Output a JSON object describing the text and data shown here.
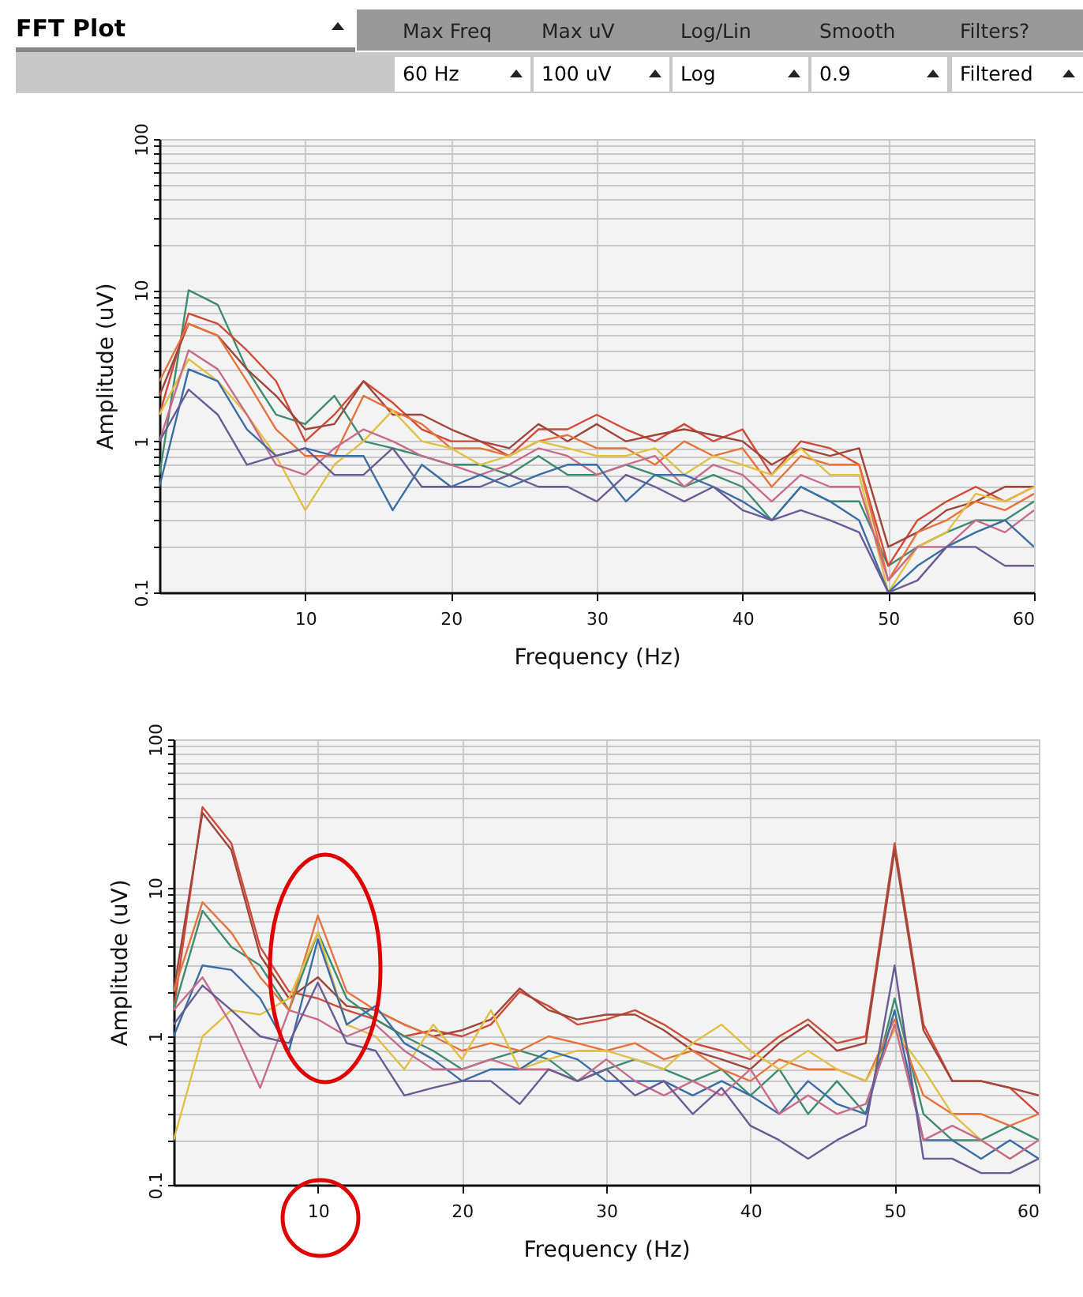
{
  "chart_data": [
    {
      "type": "line",
      "title": "FFT Plot",
      "annotations": [
        "Max Freq",
        "Max uV",
        "Log/Lin",
        "Smooth",
        "Filters?",
        "60 Hz",
        "100 uV",
        "Log",
        "0.9",
        "Filtered"
      ],
      "xlabel": "Frequency (Hz)",
      "ylabel": "Amplitude (uV)",
      "log": true,
      "grid": true,
      "xlim": [
        0,
        60
      ],
      "xticks": [
        10,
        20,
        30,
        40,
        50,
        60
      ],
      "ylim": [
        0.1,
        100
      ],
      "yticks": [
        0.1,
        {
          "value": 0.2,
          "label": null
        },
        {
          "value": 0.3,
          "label": null
        },
        {
          "value": 0.4,
          "label": null
        },
        {
          "value": 0.5,
          "label": null
        },
        {
          "value": 0.6,
          "label": null
        },
        {
          "value": 0.7,
          "label": null
        },
        {
          "value": 0.8,
          "label": null
        },
        {
          "value": 0.9,
          "label": null
        },
        1,
        {
          "value": 2,
          "label": null
        },
        {
          "value": 3,
          "label": null
        },
        {
          "value": 4,
          "label": null
        },
        {
          "value": 5,
          "label": null
        },
        {
          "value": 6,
          "label": null
        },
        {
          "value": 7,
          "label": null
        },
        {
          "value": 8,
          "label": null
        },
        {
          "value": 9,
          "label": null
        },
        10,
        {
          "value": 20,
          "label": null
        },
        {
          "value": 30,
          "label": null
        },
        {
          "value": 40,
          "label": null
        },
        {
          "value": 50,
          "label": null
        },
        {
          "value": 60,
          "label": null
        },
        {
          "value": 70,
          "label": null
        },
        {
          "value": 80,
          "label": null
        },
        {
          "value": 90,
          "label": null
        },
        100
      ],
      "x": [
        0,
        2,
        4,
        6,
        8,
        10,
        12,
        14,
        16,
        18,
        20,
        22,
        24,
        26,
        28,
        30,
        32,
        34,
        36,
        38,
        40,
        42,
        44,
        46,
        48,
        50,
        52,
        54,
        56,
        58,
        60
      ],
      "series": [
        {
          "color": "#3d8c6e",
          "values": [
            0.6,
            10,
            8,
            3,
            1.5,
            1.3,
            2,
            1,
            0.9,
            0.8,
            0.7,
            0.7,
            0.6,
            0.8,
            0.6,
            0.6,
            0.7,
            0.6,
            0.5,
            0.6,
            0.5,
            0.3,
            0.5,
            0.4,
            0.4,
            0.15,
            0.2,
            0.25,
            0.3,
            0.3,
            0.4
          ]
        },
        {
          "color": "#d04a3a",
          "values": [
            1.5,
            7,
            6,
            4,
            2.5,
            1,
            1.5,
            2.5,
            1.8,
            1.2,
            1,
            1,
            0.8,
            1.2,
            1.2,
            1.5,
            1.2,
            1,
            1.3,
            1,
            1.2,
            0.6,
            1,
            0.9,
            0.7,
            0.15,
            0.3,
            0.4,
            0.5,
            0.4,
            0.5
          ]
        },
        {
          "color": "#a0453a",
          "values": [
            2,
            6,
            5,
            3,
            2,
            1.2,
            1.3,
            2.5,
            1.5,
            1.5,
            1.2,
            1,
            0.9,
            1.3,
            1,
            1.3,
            1,
            1.1,
            1.2,
            1.1,
            1,
            0.7,
            0.9,
            0.8,
            0.9,
            0.2,
            0.25,
            0.35,
            0.4,
            0.5,
            0.5
          ]
        },
        {
          "color": "#e8733a",
          "values": [
            2.5,
            6,
            5,
            2.5,
            1.2,
            0.8,
            0.8,
            2,
            1.6,
            1.3,
            0.9,
            0.9,
            0.8,
            1,
            1.1,
            0.9,
            0.9,
            0.7,
            1,
            0.8,
            0.9,
            0.5,
            0.8,
            0.7,
            0.7,
            0.12,
            0.25,
            0.3,
            0.4,
            0.35,
            0.45
          ]
        },
        {
          "color": "#e2c044",
          "values": [
            1.5,
            3.5,
            2.5,
            1.5,
            0.8,
            0.35,
            0.7,
            1,
            1.6,
            1,
            0.9,
            0.7,
            0.8,
            1,
            0.9,
            0.8,
            0.8,
            0.9,
            0.6,
            0.8,
            0.7,
            0.6,
            0.9,
            0.6,
            0.6,
            0.1,
            0.2,
            0.25,
            0.45,
            0.4,
            0.5
          ]
        },
        {
          "color": "#c96b8b",
          "values": [
            1,
            4,
            3,
            1.5,
            0.7,
            0.6,
            0.9,
            1.2,
            1,
            0.8,
            0.7,
            0.6,
            0.7,
            0.9,
            0.8,
            0.6,
            0.7,
            0.8,
            0.5,
            0.7,
            0.6,
            0.4,
            0.6,
            0.5,
            0.5,
            0.12,
            0.2,
            0.2,
            0.3,
            0.25,
            0.35
          ]
        },
        {
          "color": "#3a6ea5",
          "values": [
            0.5,
            3,
            2.5,
            1.2,
            0.8,
            0.9,
            0.8,
            0.8,
            0.35,
            0.7,
            0.5,
            0.6,
            0.5,
            0.6,
            0.7,
            0.7,
            0.4,
            0.6,
            0.6,
            0.5,
            0.4,
            0.3,
            0.5,
            0.4,
            0.3,
            0.1,
            0.15,
            0.2,
            0.25,
            0.3,
            0.2
          ]
        },
        {
          "color": "#6b5b95",
          "values": [
            1,
            2.2,
            1.5,
            0.7,
            0.8,
            0.9,
            0.6,
            0.6,
            0.9,
            0.5,
            0.5,
            0.5,
            0.6,
            0.5,
            0.5,
            0.4,
            0.6,
            0.5,
            0.4,
            0.5,
            0.35,
            0.3,
            0.35,
            0.3,
            0.25,
            0.1,
            0.12,
            0.2,
            0.2,
            0.15,
            0.15
          ]
        }
      ]
    },
    {
      "type": "line",
      "xlabel": "Frequency (Hz)",
      "ylabel": "Amplitude (uV)",
      "log": true,
      "grid": true,
      "xlim": [
        0,
        60
      ],
      "xticks": [
        10,
        20,
        30,
        40,
        50,
        60
      ],
      "ylim": [
        0.1,
        100
      ],
      "yticks": [
        0.1,
        {
          "value": 0.2,
          "label": null
        },
        {
          "value": 0.3,
          "label": null
        },
        {
          "value": 0.4,
          "label": null
        },
        {
          "value": 0.5,
          "label": null
        },
        {
          "value": 0.6,
          "label": null
        },
        {
          "value": 0.7,
          "label": null
        },
        {
          "value": 0.8,
          "label": null
        },
        {
          "value": 0.9,
          "label": null
        },
        1,
        {
          "value": 2,
          "label": null
        },
        {
          "value": 3,
          "label": null
        },
        {
          "value": 4,
          "label": null
        },
        {
          "value": 5,
          "label": null
        },
        {
          "value": 6,
          "label": null
        },
        {
          "value": 7,
          "label": null
        },
        {
          "value": 8,
          "label": null
        },
        {
          "value": 9,
          "label": null
        },
        10,
        {
          "value": 20,
          "label": null
        },
        {
          "value": 30,
          "label": null
        },
        {
          "value": 40,
          "label": null
        },
        {
          "value": 50,
          "label": null
        },
        {
          "value": 60,
          "label": null
        },
        {
          "value": 70,
          "label": null
        },
        {
          "value": 80,
          "label": null
        },
        {
          "value": 90,
          "label": null
        },
        100
      ],
      "x": [
        0,
        2,
        4,
        6,
        8,
        10,
        12,
        14,
        16,
        18,
        20,
        22,
        24,
        26,
        28,
        30,
        32,
        34,
        36,
        38,
        40,
        42,
        44,
        46,
        48,
        50,
        52,
        54,
        56,
        58,
        60
      ],
      "series": [
        {
          "color": "#d04a3a",
          "values": [
            1.5,
            35,
            20,
            4,
            2,
            1.8,
            1.5,
            1.3,
            1,
            1.1,
            1,
            1.2,
            2,
            1.6,
            1.2,
            1.3,
            1.5,
            1.2,
            0.9,
            0.8,
            0.7,
            1,
            1.3,
            0.9,
            1,
            20,
            1.2,
            0.5,
            0.5,
            0.45,
            0.3
          ]
        },
        {
          "color": "#a0453a",
          "values": [
            2,
            32,
            18,
            3.5,
            1.8,
            2.5,
            1.6,
            1.5,
            1.2,
            1,
            1.1,
            1.3,
            2.1,
            1.5,
            1.3,
            1.4,
            1.4,
            1.1,
            0.8,
            0.7,
            0.6,
            0.9,
            1.2,
            0.8,
            0.9,
            18,
            1.1,
            0.5,
            0.5,
            0.45,
            0.4
          ]
        },
        {
          "color": "#3d8c6e",
          "values": [
            1.5,
            7,
            4,
            3,
            1.5,
            5,
            1.8,
            1.3,
            1,
            0.8,
            0.6,
            0.7,
            0.8,
            0.7,
            0.5,
            0.6,
            0.7,
            0.6,
            0.5,
            0.6,
            0.4,
            0.6,
            0.3,
            0.5,
            0.3,
            1.8,
            0.3,
            0.2,
            0.2,
            0.25,
            0.2
          ]
        },
        {
          "color": "#e8733a",
          "values": [
            2,
            8,
            5,
            2.5,
            1.5,
            6.5,
            2,
            1.5,
            1.2,
            1,
            0.8,
            0.9,
            0.8,
            1,
            0.9,
            0.8,
            0.9,
            0.7,
            0.8,
            0.6,
            0.5,
            0.7,
            0.6,
            0.6,
            0.5,
            1.3,
            0.4,
            0.3,
            0.3,
            0.25,
            0.3
          ]
        },
        {
          "color": "#e2c044",
          "values": [
            0.2,
            1,
            1.5,
            1.4,
            1.8,
            5,
            1.2,
            1,
            0.6,
            1.2,
            0.7,
            1.5,
            0.6,
            0.7,
            0.8,
            0.8,
            0.7,
            0.6,
            0.9,
            1.2,
            0.8,
            0.6,
            0.8,
            0.6,
            0.5,
            1.1,
            0.6,
            0.3,
            0.2,
            0.15,
            0.2
          ]
        },
        {
          "color": "#3a6ea5",
          "values": [
            1,
            3,
            2.8,
            1.8,
            0.8,
            4.5,
            1.2,
            1.6,
            0.9,
            0.7,
            0.5,
            0.6,
            0.6,
            0.8,
            0.7,
            0.5,
            0.5,
            0.5,
            0.4,
            0.5,
            0.4,
            0.3,
            0.5,
            0.35,
            0.3,
            1.5,
            0.2,
            0.2,
            0.15,
            0.2,
            0.15
          ]
        },
        {
          "color": "#c96b8b",
          "values": [
            1.5,
            2.5,
            1.2,
            0.45,
            1.5,
            1.3,
            1,
            1.2,
            0.8,
            0.6,
            0.6,
            0.7,
            0.6,
            0.6,
            0.5,
            0.7,
            0.5,
            0.4,
            0.5,
            0.4,
            0.6,
            0.3,
            0.4,
            0.3,
            0.35,
            1.2,
            0.2,
            0.25,
            0.2,
            0.15,
            0.2
          ]
        },
        {
          "color": "#6b5b95",
          "values": [
            1.2,
            2.2,
            1.5,
            1,
            0.9,
            2.3,
            0.9,
            0.8,
            0.4,
            0.45,
            0.5,
            0.5,
            0.35,
            0.6,
            0.5,
            0.6,
            0.4,
            0.5,
            0.3,
            0.45,
            0.25,
            0.2,
            0.15,
            0.2,
            0.25,
            3,
            0.15,
            0.15,
            0.12,
            0.12,
            0.15
          ]
        }
      ]
    }
  ]
}
